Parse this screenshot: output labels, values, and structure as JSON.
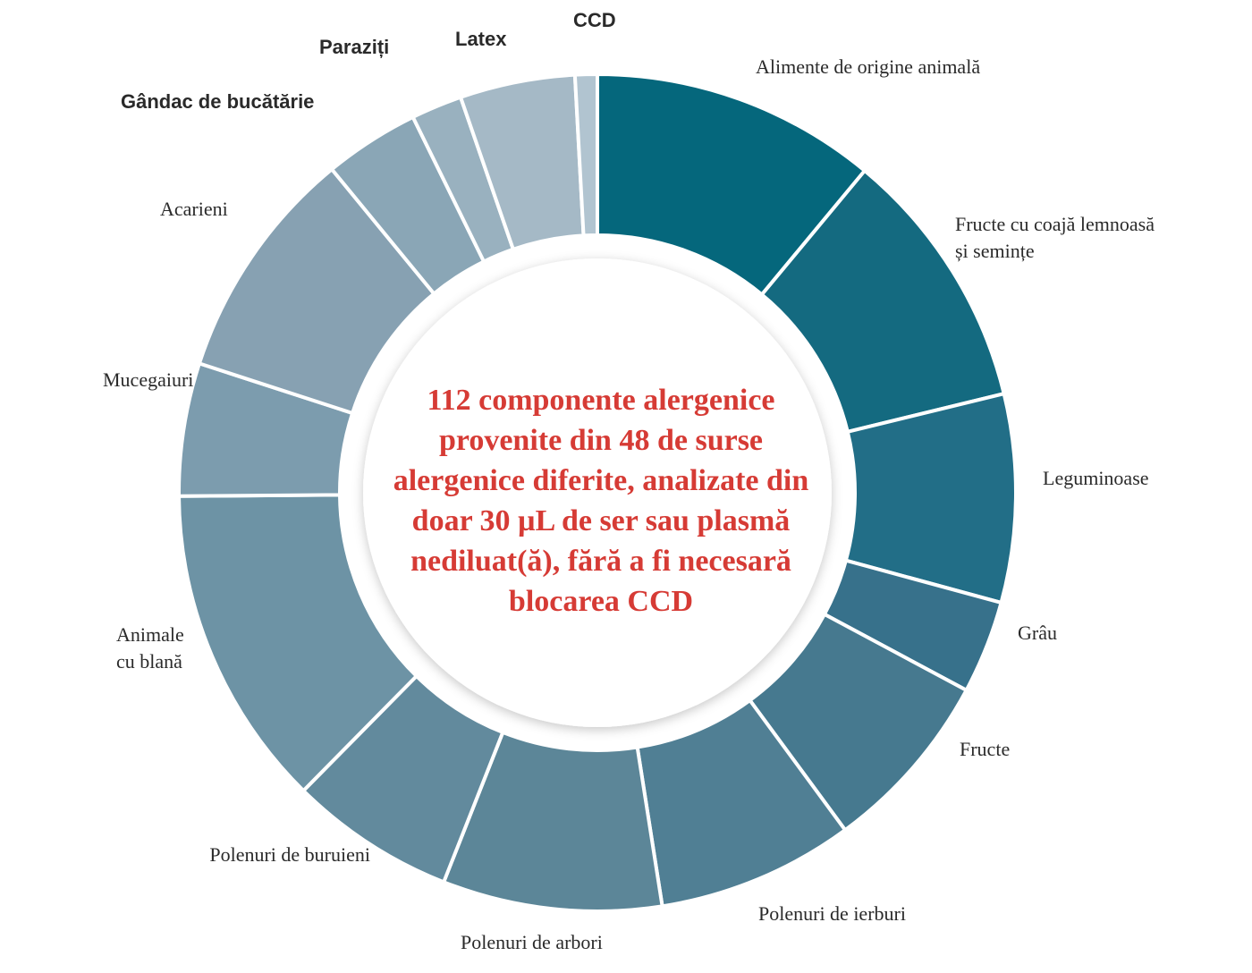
{
  "chart_data": {
    "type": "pie",
    "donut": true,
    "center_text": "112 componente alergenice provenite din 48 de surse alergenice diferite, analizate din doar 30 µL de ser sau plasmă nediluat(ă), fără a fi necesară blocarea CCD",
    "center_color": "#d63b35",
    "slices": [
      {
        "label": "Alimente de origine animală",
        "value": 12.9,
        "color": "#05677c"
      },
      {
        "label": "Fructe cu coajă lemnoasă și semințe",
        "value": 11.9,
        "color": "#146a80"
      },
      {
        "label": "Leguminoase",
        "value": 9.4,
        "color": "#226e87"
      },
      {
        "label": "Grâu",
        "value": 4.2,
        "color": "#37718b"
      },
      {
        "label": "Fructe",
        "value": 8.3,
        "color": "#46798f"
      },
      {
        "label": "Polenuri de ierburi",
        "value": 8.9,
        "color": "#507f94"
      },
      {
        "label": "Polenuri de arbori",
        "value": 9.9,
        "color": "#5c8698"
      },
      {
        "label": "Polenuri de buruieni",
        "value": 7.5,
        "color": "#628a9d"
      },
      {
        "label": "Animale cu blană",
        "value": 14.6,
        "color": "#6d93a5"
      },
      {
        "label": "Mucegaiuri",
        "value": 6.0,
        "color": "#7c9cae"
      },
      {
        "label": "Acarieni",
        "value": 10.6,
        "color": "#87a1b2"
      },
      {
        "label": "Gândac de bucătărie",
        "value": 4.3,
        "color": "#8aa6b6"
      },
      {
        "label": "Paraziți",
        "value": 2.3,
        "color": "#99b1bf"
      },
      {
        "label": "Latex",
        "value": 5.2,
        "color": "#a5b9c6"
      },
      {
        "label": "CCD",
        "value": 1.0,
        "color": "#b1c4d0"
      }
    ]
  }
}
